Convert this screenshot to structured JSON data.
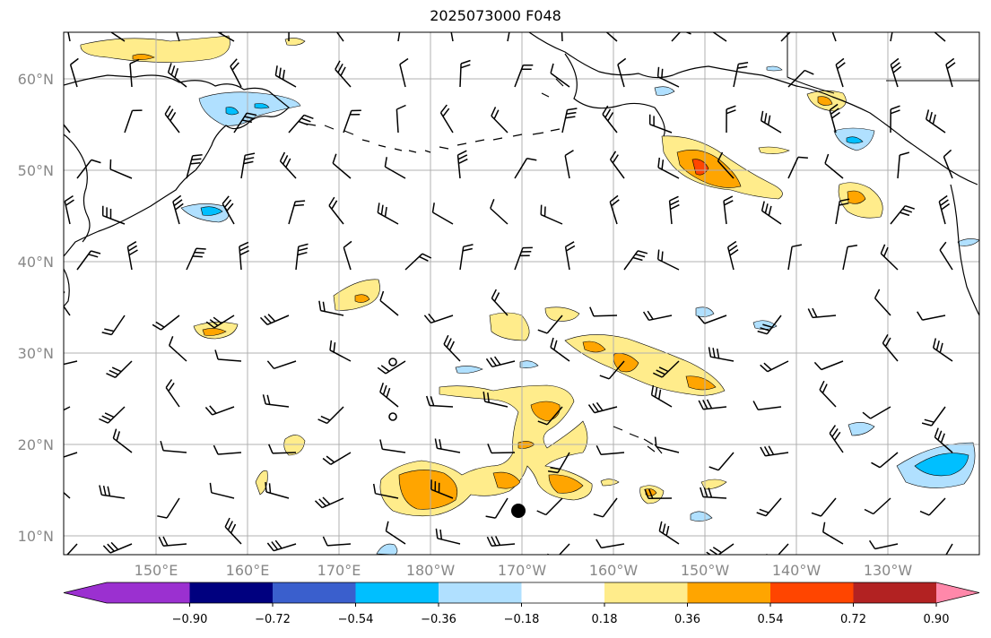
{
  "title": "2025073000 F048",
  "lat_labels": [
    "10°N",
    "20°N",
    "30°N",
    "40°N",
    "50°N",
    "60°N"
  ],
  "lon_labels": [
    "150°E",
    "160°E",
    "170°E",
    "180°W",
    "170°W",
    "160°W",
    "150°W",
    "140°W",
    "130°W"
  ],
  "colorbar": {
    "ticks": [
      "−0.90",
      "−0.72",
      "−0.54",
      "−0.36",
      "−0.18",
      "0.18",
      "0.36",
      "0.54",
      "0.72",
      "0.90"
    ],
    "colors": [
      "#9b30d0",
      "#00007f",
      "#3a5fcd",
      "#00bfff",
      "#b0e0ff",
      "#ffffff",
      "#ffec8b",
      "#ffa500",
      "#ff4500",
      "#b22222",
      "#ff88aa"
    ]
  },
  "colors": {
    "coast": "#000000",
    "grid": "#b0b0b0",
    "barb": "#000000"
  }
}
